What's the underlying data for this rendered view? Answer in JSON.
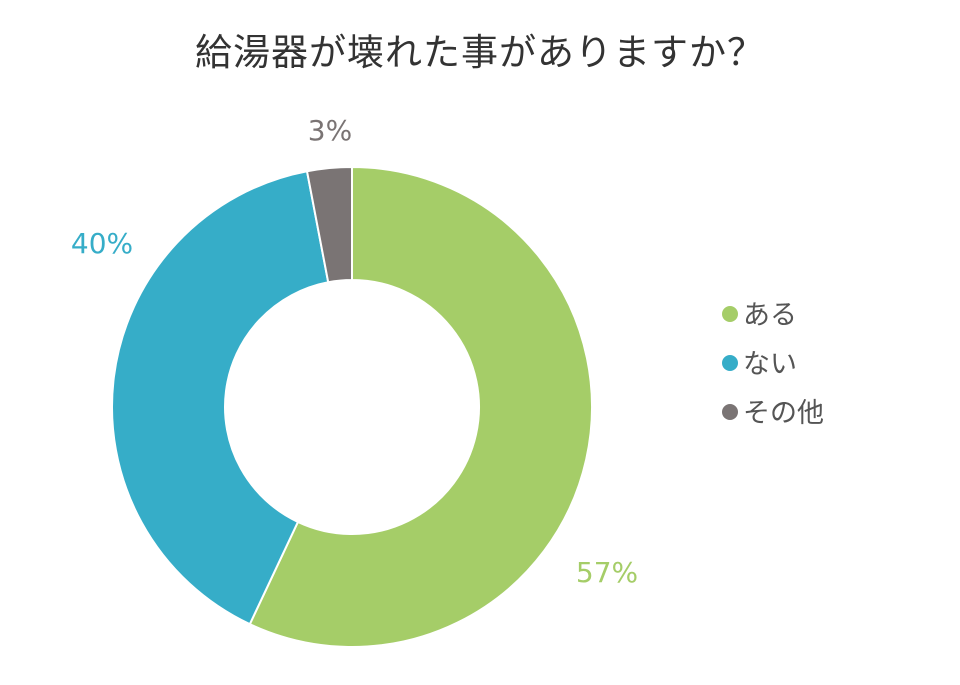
{
  "chart_data": {
    "type": "pie",
    "variant": "donut",
    "title": "給湯器が壊れた事がありますか？",
    "categories": [
      "ある",
      "ない",
      "その他"
    ],
    "values": [
      57,
      40,
      3
    ],
    "value_labels": [
      "57%",
      "40%",
      "3%"
    ],
    "colors": [
      "#a5cd68",
      "#36adc8",
      "#7a7474"
    ],
    "legend": {
      "position": "right",
      "entries": [
        "ある",
        "ない",
        "その他"
      ]
    }
  }
}
